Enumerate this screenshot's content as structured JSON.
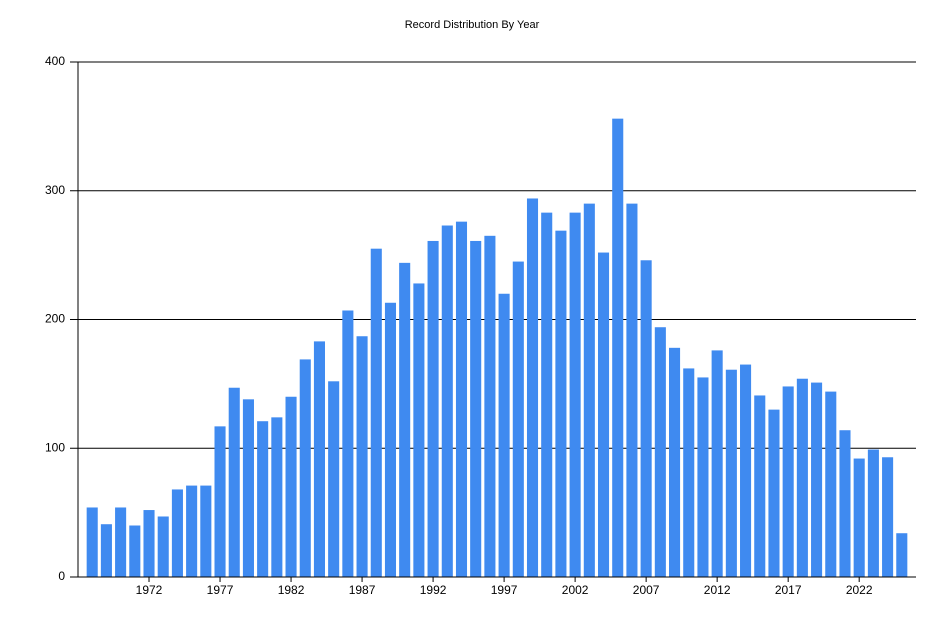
{
  "chart_data": {
    "type": "bar",
    "title": "Record Distribution By Year",
    "x": [
      1968,
      1969,
      1970,
      1971,
      1972,
      1973,
      1974,
      1975,
      1976,
      1977,
      1978,
      1979,
      1980,
      1981,
      1982,
      1983,
      1984,
      1985,
      1986,
      1987,
      1988,
      1989,
      1990,
      1991,
      1992,
      1993,
      1994,
      1995,
      1996,
      1997,
      1998,
      1999,
      2000,
      2001,
      2002,
      2003,
      2004,
      2005,
      2006,
      2007,
      2008,
      2009,
      2010,
      2011,
      2012,
      2013,
      2014,
      2015,
      2016,
      2017,
      2018,
      2019,
      2020,
      2021,
      2022,
      2023,
      2024,
      2025
    ],
    "values": [
      54,
      41,
      54,
      40,
      52,
      47,
      68,
      71,
      71,
      117,
      147,
      138,
      121,
      124,
      140,
      169,
      183,
      152,
      207,
      187,
      255,
      213,
      244,
      228,
      261,
      273,
      276,
      261,
      265,
      220,
      245,
      294,
      283,
      269,
      283,
      290,
      252,
      356,
      290,
      246,
      194,
      178,
      162,
      155,
      176,
      161,
      165,
      141,
      130,
      148,
      154,
      151,
      144,
      114,
      92,
      99,
      93,
      34
    ],
    "color": "#3f8af0",
    "xlim": [
      1967,
      2026
    ],
    "xticks": [
      1972,
      1977,
      1982,
      1987,
      1992,
      1997,
      2002,
      2007,
      2012,
      2017,
      2022
    ],
    "ylim": [
      0,
      400
    ],
    "yticks": [
      0,
      100,
      200,
      300,
      400
    ],
    "grid": true
  }
}
